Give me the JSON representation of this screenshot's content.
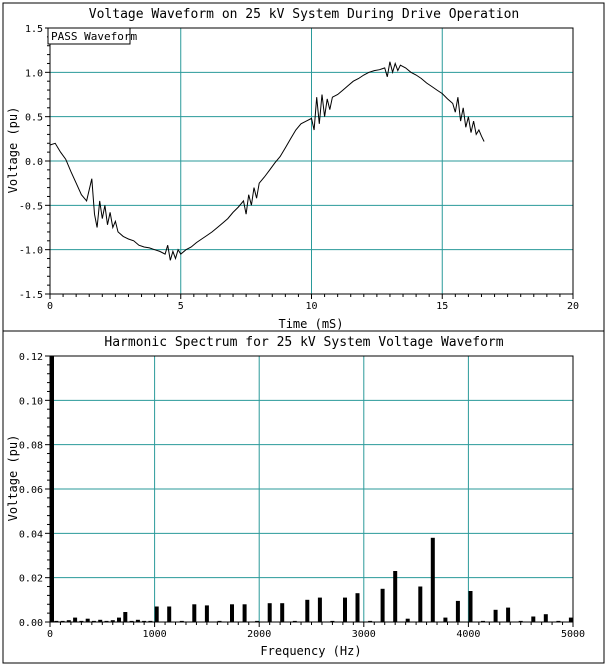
{
  "chart_data": [
    {
      "type": "line",
      "title": "Voltage Waveform on 25 kV System During Drive Operation",
      "xlabel": "Time (mS)",
      "ylabel": "Voltage (pu)",
      "xlim": [
        0,
        20
      ],
      "ylim": [
        -1.5,
        1.5
      ],
      "x_ticks": [
        0,
        5,
        10,
        15,
        20
      ],
      "y_ticks": [
        1.5,
        1.0,
        0.5,
        0.0,
        -0.5,
        -1.0,
        -1.5
      ],
      "x_tick_labels": [
        "0",
        "5",
        "10",
        "15",
        "20"
      ],
      "y_tick_labels": [
        "1.5",
        "1.0",
        "0.5",
        "0.0",
        "-0.5",
        "-1.0",
        "-1.5"
      ],
      "grid": true,
      "legend": "top-left",
      "series": [
        {
          "name": "PASS Waveform",
          "x": [
            0,
            0.2,
            0.4,
            0.6,
            0.8,
            1.0,
            1.2,
            1.4,
            1.6,
            1.7,
            1.8,
            1.9,
            2.0,
            2.1,
            2.2,
            2.3,
            2.4,
            2.5,
            2.6,
            2.8,
            3.0,
            3.2,
            3.4,
            3.6,
            3.8,
            4.0,
            4.2,
            4.4,
            4.5,
            4.6,
            4.7,
            4.8,
            4.9,
            5.0,
            5.2,
            5.4,
            5.6,
            5.8,
            6.0,
            6.2,
            6.4,
            6.6,
            6.8,
            7.0,
            7.2,
            7.4,
            7.5,
            7.6,
            7.7,
            7.8,
            7.9,
            8.0,
            8.2,
            8.4,
            8.6,
            8.8,
            9.0,
            9.2,
            9.4,
            9.6,
            9.8,
            10.0,
            10.1,
            10.2,
            10.3,
            10.4,
            10.5,
            10.6,
            10.7,
            10.8,
            11.0,
            11.2,
            11.4,
            11.6,
            11.8,
            12.0,
            12.2,
            12.4,
            12.6,
            12.8,
            12.9,
            13.0,
            13.1,
            13.2,
            13.3,
            13.4,
            13.6,
            13.8,
            14.0,
            14.2,
            14.4,
            14.6,
            14.8,
            15.0,
            15.2,
            15.4,
            15.5,
            15.6,
            15.7,
            15.8,
            15.9,
            16.0,
            16.1,
            16.2,
            16.3,
            16.4,
            16.5,
            16.6
          ],
          "y": [
            0.18,
            0.2,
            0.1,
            0.02,
            -0.12,
            -0.25,
            -0.38,
            -0.45,
            -0.2,
            -0.6,
            -0.75,
            -0.45,
            -0.65,
            -0.5,
            -0.72,
            -0.58,
            -0.75,
            -0.68,
            -0.8,
            -0.85,
            -0.88,
            -0.9,
            -0.95,
            -0.97,
            -0.98,
            -1.0,
            -1.02,
            -1.05,
            -0.95,
            -1.12,
            -1.02,
            -1.1,
            -1.0,
            -1.05,
            -1.0,
            -0.97,
            -0.92,
            -0.88,
            -0.84,
            -0.8,
            -0.75,
            -0.7,
            -0.65,
            -0.58,
            -0.52,
            -0.45,
            -0.6,
            -0.38,
            -0.5,
            -0.3,
            -0.42,
            -0.25,
            -0.18,
            -0.1,
            -0.02,
            0.05,
            0.15,
            0.25,
            0.35,
            0.42,
            0.45,
            0.48,
            0.35,
            0.72,
            0.42,
            0.75,
            0.5,
            0.7,
            0.58,
            0.72,
            0.75,
            0.8,
            0.85,
            0.9,
            0.93,
            0.97,
            1.0,
            1.02,
            1.03,
            1.05,
            0.95,
            1.12,
            1.0,
            1.1,
            1.02,
            1.08,
            1.05,
            1.0,
            0.97,
            0.93,
            0.88,
            0.84,
            0.8,
            0.76,
            0.7,
            0.65,
            0.55,
            0.72,
            0.45,
            0.6,
            0.38,
            0.5,
            0.32,
            0.45,
            0.3,
            0.35,
            0.28,
            0.22
          ]
        }
      ]
    },
    {
      "type": "bar",
      "title": "Harmonic Spectrum for 25 kV System Voltage Waveform",
      "xlabel": "Frequency (Hz)",
      "ylabel": "Voltage (pu)",
      "xlim": [
        0,
        5000
      ],
      "ylim": [
        0,
        0.12
      ],
      "x_ticks": [
        0,
        1000,
        2000,
        3000,
        4000,
        5000
      ],
      "y_ticks": [
        0.12,
        0.1,
        0.08,
        0.06,
        0.04,
        0.02,
        0.0
      ],
      "x_tick_labels": [
        "0",
        "1000",
        "2000",
        "3000",
        "4000",
        "5000"
      ],
      "y_tick_labels": [
        "0.12",
        "0.10",
        "0.08",
        "0.06",
        "0.04",
        "0.02",
        "0.00"
      ],
      "grid": true,
      "x": [
        0,
        60,
        120,
        180,
        240,
        300,
        360,
        420,
        480,
        540,
        600,
        660,
        720,
        780,
        840,
        900,
        960,
        1020,
        1140,
        1260,
        1380,
        1500,
        1620,
        1740,
        1860,
        1980,
        2100,
        2220,
        2340,
        2460,
        2580,
        2700,
        2820,
        2940,
        3060,
        3180,
        3300,
        3420,
        3540,
        3660,
        3780,
        3900,
        4020,
        4140,
        4260,
        4380,
        4500,
        4620,
        4740,
        4860,
        4980
      ],
      "values": [
        0.12,
        0.0005,
        0.0005,
        0.0008,
        0.002,
        0.0005,
        0.0015,
        0.0005,
        0.001,
        0.0005,
        0.0008,
        0.002,
        0.0045,
        0.0005,
        0.001,
        0.0005,
        0.0005,
        0.007,
        0.007,
        0.0005,
        0.008,
        0.0075,
        0.0005,
        0.008,
        0.008,
        0.0005,
        0.0085,
        0.0085,
        0.0005,
        0.01,
        0.011,
        0.0005,
        0.011,
        0.013,
        0.0005,
        0.015,
        0.023,
        0.0015,
        0.016,
        0.038,
        0.002,
        0.0095,
        0.014,
        0.0005,
        0.0055,
        0.0065,
        0.0005,
        0.0025,
        0.0035,
        0.0005,
        0.002
      ]
    }
  ]
}
